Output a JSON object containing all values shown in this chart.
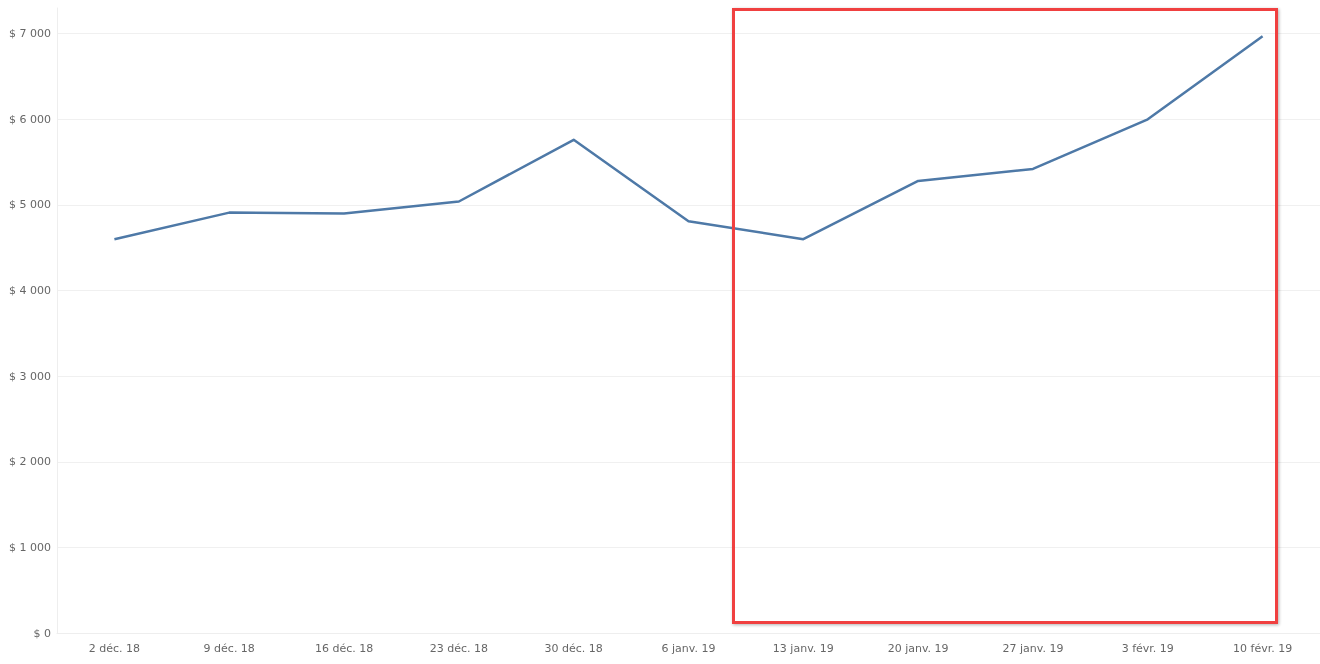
{
  "chart_data": {
    "type": "line",
    "categories": [
      "2 déc. 18",
      "9 déc. 18",
      "16 déc. 18",
      "23 déc. 18",
      "30 déc. 18",
      "6 janv. 19",
      "13 janv. 19",
      "20 janv. 19",
      "27 janv. 19",
      "3 févr. 19",
      "10 févr. 19"
    ],
    "series": [
      {
        "color": "#4e79a7",
        "values": [
          4600,
          4910,
          4900,
          5040,
          5760,
          4810,
          4600,
          5280,
          5420,
          6000,
          6970
        ]
      }
    ],
    "ylim": [
      0,
      7300
    ],
    "yticks": [
      {
        "value": 0,
        "label": "$ 0"
      },
      {
        "value": 1000,
        "label": "$ 1 000"
      },
      {
        "value": 2000,
        "label": "$ 2 000"
      },
      {
        "value": 3000,
        "label": "$ 3 000"
      },
      {
        "value": 4000,
        "label": "$ 4 000"
      },
      {
        "value": 5000,
        "label": "$ 5 000"
      },
      {
        "value": 6000,
        "label": "$ 6 000"
      },
      {
        "value": 7000,
        "label": "$ 7 000"
      }
    ],
    "grid": "y",
    "marker": "none",
    "line_style": "solid"
  }
}
